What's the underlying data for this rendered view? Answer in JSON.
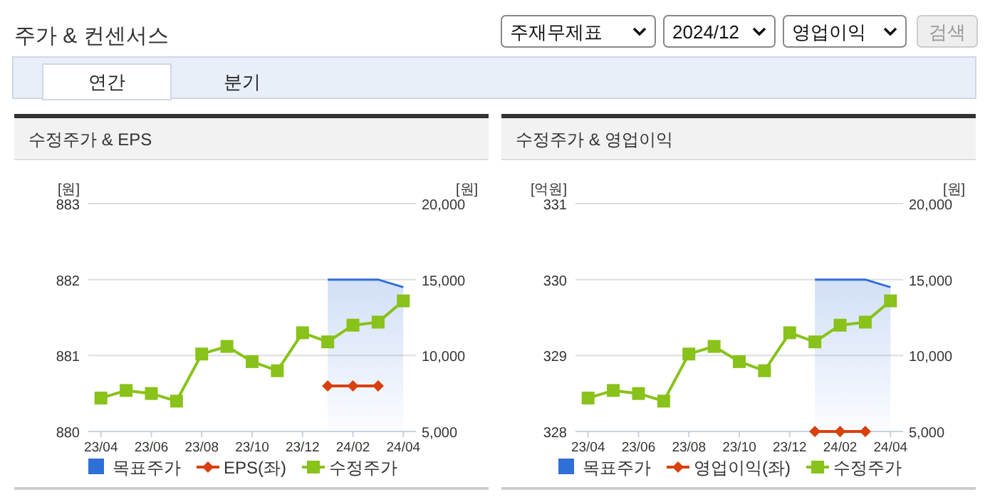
{
  "chart_data": [
    {
      "type": "line",
      "title": "수정주가 & EPS",
      "ylabel": "[원]",
      "y2label": "[원]",
      "annotations": [
        "주가 & 컨센서스",
        "주재무제표",
        "2024/12",
        "영업이익",
        "검색",
        "연간",
        "분기"
      ],
      "categories": [
        "23/04",
        null,
        "23/06",
        null,
        "23/08",
        null,
        "23/10",
        null,
        "23/12",
        null,
        "24/02",
        null,
        "24/04"
      ],
      "series": [
        {
          "name": "목표주가",
          "type": "area",
          "axis": "y2",
          "color": "#2f6fd8",
          "marker": "none",
          "values": [
            null,
            null,
            null,
            null,
            null,
            null,
            null,
            null,
            null,
            15000,
            15000,
            15000,
            14500
          ]
        },
        {
          "name": "EPS(좌)",
          "color": "#d8400c",
          "marker": "diamond",
          "values": [
            null,
            null,
            null,
            null,
            null,
            null,
            null,
            null,
            null,
            880.6,
            880.6,
            880.6,
            null
          ]
        },
        {
          "name": "수정주가",
          "axis": "y2",
          "color": "#88c21a",
          "marker": "square",
          "values": [
            7200,
            7700,
            7500,
            7000,
            10100,
            10600,
            9600,
            9000,
            11500,
            10900,
            12000,
            12200,
            13600
          ]
        }
      ],
      "ylim": [
        880,
        883
      ],
      "yticks": [
        880,
        881,
        882,
        883
      ],
      "y2lim": [
        5000,
        20000
      ],
      "y2ticks": [
        {
          "value": 5000,
          "label": "5,000"
        },
        {
          "value": 10000,
          "label": "10,000"
        },
        {
          "value": 15000,
          "label": "15,000"
        },
        {
          "value": 20000,
          "label": "20,000"
        }
      ],
      "grid": "y",
      "legend": "bottom"
    },
    {
      "type": "line",
      "title": "수정주가 & 영업이익",
      "ylabel": "[억원]",
      "y2label": "[원]",
      "categories": [
        "23/04",
        null,
        "23/06",
        null,
        "23/08",
        null,
        "23/10",
        null,
        "23/12",
        null,
        "24/02",
        null,
        "24/04"
      ],
      "series": [
        {
          "name": "목표주가",
          "type": "area",
          "axis": "y2",
          "color": "#2f6fd8",
          "marker": "none",
          "values": [
            null,
            null,
            null,
            null,
            null,
            null,
            null,
            null,
            null,
            15000,
            15000,
            15000,
            14500
          ]
        },
        {
          "name": "영업이익(좌)",
          "color": "#d8400c",
          "marker": "diamond",
          "values": [
            null,
            null,
            null,
            null,
            null,
            null,
            null,
            null,
            null,
            328,
            328,
            328,
            null
          ]
        },
        {
          "name": "수정주가",
          "axis": "y2",
          "color": "#88c21a",
          "marker": "square",
          "values": [
            7200,
            7700,
            7500,
            7000,
            10100,
            10600,
            9600,
            9000,
            11500,
            10900,
            12000,
            12200,
            13600
          ]
        }
      ],
      "ylim": [
        328,
        331
      ],
      "yticks": [
        328,
        329,
        330,
        331
      ],
      "y2lim": [
        5000,
        20000
      ],
      "y2ticks": [
        {
          "value": 5000,
          "label": "5,000"
        },
        {
          "value": 10000,
          "label": "10,000"
        },
        {
          "value": 15000,
          "label": "15,000"
        },
        {
          "value": 20000,
          "label": "20,000"
        }
      ],
      "grid": "y",
      "legend": "bottom"
    }
  ]
}
